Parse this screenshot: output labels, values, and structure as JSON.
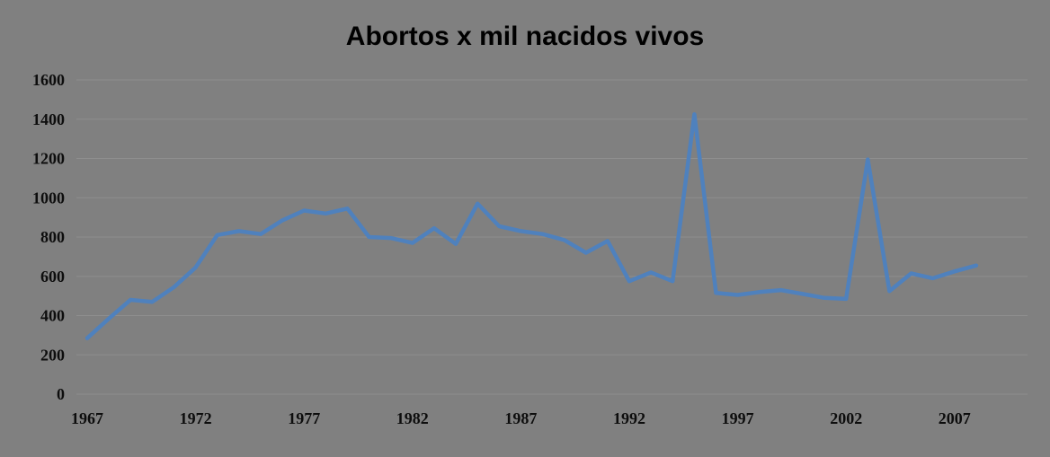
{
  "chart_data": {
    "type": "line",
    "title": "Abortos x mil nacidos vivos",
    "xlabel": "",
    "ylabel": "",
    "x": [
      1967,
      1968,
      1969,
      1970,
      1971,
      1972,
      1973,
      1974,
      1975,
      1976,
      1977,
      1978,
      1979,
      1980,
      1981,
      1982,
      1983,
      1984,
      1985,
      1986,
      1987,
      1988,
      1989,
      1990,
      1991,
      1992,
      1993,
      1994,
      1995,
      1996,
      1997,
      1998,
      1999,
      2000,
      2001,
      2002,
      2003,
      2004,
      2005,
      2006,
      2007,
      2008
    ],
    "values": [
      285,
      385,
      480,
      470,
      545,
      645,
      810,
      830,
      815,
      885,
      935,
      920,
      945,
      800,
      795,
      770,
      845,
      765,
      970,
      855,
      830,
      815,
      785,
      720,
      780,
      575,
      620,
      575,
      1425,
      515,
      505,
      520,
      530,
      510,
      490,
      485,
      1195,
      525,
      615,
      590,
      625,
      655
    ],
    "ylim": [
      0,
      1600
    ],
    "y_ticks": [
      0,
      200,
      400,
      600,
      800,
      1000,
      1200,
      1400,
      1600
    ],
    "x_tick_labels": [
      "1967",
      "1972",
      "1977",
      "1982",
      "1987",
      "1992",
      "1997",
      "2002",
      "2007"
    ],
    "grid": true,
    "legend_position": "none",
    "colors": {
      "background": "#808080",
      "gridline": "#8e8e8e",
      "series_line": "#4f81bd",
      "text": "#0d0d0d"
    }
  }
}
